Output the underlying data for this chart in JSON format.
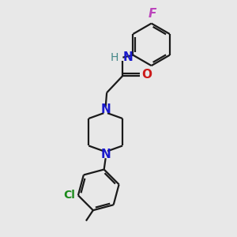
{
  "bg_color": "#e8e8e8",
  "bond_color": "#1a1a1a",
  "N_color": "#1a1acc",
  "O_color": "#cc1a1a",
  "F_color": "#bb44bb",
  "Cl_color": "#1a8a1a",
  "lw": 1.6,
  "fs": 10,
  "figsize": [
    3.0,
    3.0
  ],
  "dpi": 100,
  "xlim": [
    0,
    10
  ],
  "ylim": [
    0,
    10
  ]
}
